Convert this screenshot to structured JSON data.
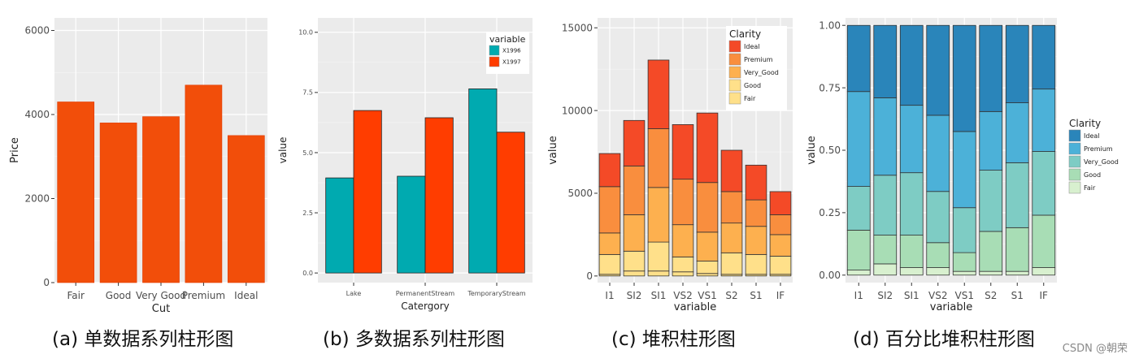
{
  "captions": [
    "(a) 单数据系列柱形图",
    "(b) 多数据系列柱形图",
    "(c) 堆积柱形图",
    "(d) 百分比堆积柱形图"
  ],
  "watermark": "CSDN @朝荣",
  "chart_data": [
    {
      "type": "bar",
      "xlabel": "Cut",
      "ylabel": "Price",
      "categories": [
        "Fair",
        "Good",
        "Very Good",
        "Premium",
        "Ideal"
      ],
      "values": [
        4300,
        3800,
        3950,
        4700,
        3500
      ],
      "ylim": [
        0,
        6300
      ],
      "yticks": [
        0,
        2000,
        4000,
        6000
      ],
      "ytick_labels": [
        "0",
        "2000",
        "4000",
        "6000"
      ],
      "color": "#F24E0A",
      "grid": true,
      "legend": "none"
    },
    {
      "type": "bar",
      "xlabel": "Catergory",
      "ylabel": "value",
      "categories": [
        "Lake",
        "PermanentStream",
        "TemporaryStream"
      ],
      "series": [
        {
          "name": "X1996",
          "color": "#00AAB0",
          "values": [
            3.95,
            4.02,
            7.65
          ]
        },
        {
          "name": "X1997",
          "color": "#FF3D00",
          "values": [
            6.75,
            6.45,
            5.85
          ]
        }
      ],
      "ylim": [
        -0.4,
        10.6
      ],
      "yticks": [
        0,
        2.5,
        5,
        7.5,
        10
      ],
      "ytick_labels": [
        "0.0",
        "2.5",
        "5.0",
        "7.5",
        "10.0"
      ],
      "legend_title": "variable",
      "legend": "top-right",
      "grid": true
    },
    {
      "type": "bar",
      "stacked": true,
      "xlabel": "variable",
      "ylabel": "value",
      "categories": [
        "I1",
        "SI2",
        "SI1",
        "VS2",
        "VS1",
        "S2",
        "S1",
        "IF"
      ],
      "series": [
        {
          "name": "Fair",
          "color": "#FEE08A",
          "values": [
            100,
            300,
            300,
            250,
            150,
            100,
            100,
            100
          ]
        },
        {
          "name": "Good",
          "color": "#FFE08A",
          "values": [
            1200,
            1200,
            1750,
            900,
            750,
            1300,
            1200,
            1100
          ]
        },
        {
          "name": "Very_Good",
          "color": "#FDB04F",
          "values": [
            1300,
            2200,
            3300,
            1950,
            1750,
            1800,
            1700,
            1300
          ]
        },
        {
          "name": "Premium",
          "color": "#F98E3E",
          "values": [
            2800,
            2950,
            3550,
            2750,
            3000,
            1900,
            1600,
            1200
          ]
        },
        {
          "name": "Ideal",
          "color": "#F44A27",
          "values": [
            2000,
            2750,
            4150,
            3300,
            4200,
            2500,
            2100,
            1400
          ]
        }
      ],
      "ylim": [
        -400,
        15600
      ],
      "yticks": [
        0,
        5000,
        10000,
        15000
      ],
      "ytick_labels": [
        "0",
        "5000",
        "10000",
        "15000"
      ],
      "legend_title": "Clarity",
      "legend": "top-right",
      "grid": true
    },
    {
      "type": "bar",
      "stacked": true,
      "percent": true,
      "xlabel": "variable",
      "ylabel": "value",
      "categories": [
        "I1",
        "SI2",
        "SI1",
        "VS2",
        "VS1",
        "S2",
        "S1",
        "IF"
      ],
      "series": [
        {
          "name": "Fair",
          "color": "#D8F0CF",
          "values": [
            0.02,
            0.045,
            0.03,
            0.03,
            0.015,
            0.015,
            0.015,
            0.03
          ]
        },
        {
          "name": "Good",
          "color": "#A8DDB5",
          "values": [
            0.16,
            0.115,
            0.13,
            0.1,
            0.075,
            0.16,
            0.175,
            0.21
          ]
        },
        {
          "name": "Very_Good",
          "color": "#7ECCC4",
          "values": [
            0.175,
            0.24,
            0.25,
            0.205,
            0.18,
            0.245,
            0.26,
            0.255
          ]
        },
        {
          "name": "Premium",
          "color": "#4CB1D8",
          "values": [
            0.38,
            0.31,
            0.27,
            0.305,
            0.305,
            0.235,
            0.24,
            0.25
          ]
        },
        {
          "name": "Ideal",
          "color": "#2A85BA",
          "values": [
            0.265,
            0.29,
            0.32,
            0.36,
            0.425,
            0.345,
            0.31,
            0.255
          ]
        }
      ],
      "ylim": [
        -0.03,
        1.03
      ],
      "yticks": [
        0,
        0.25,
        0.5,
        0.75,
        1
      ],
      "ytick_labels": [
        "0.00",
        "0.25",
        "0.50",
        "0.75",
        "1.00"
      ],
      "legend_title": "Clarity",
      "legend": "right",
      "grid": true
    }
  ]
}
